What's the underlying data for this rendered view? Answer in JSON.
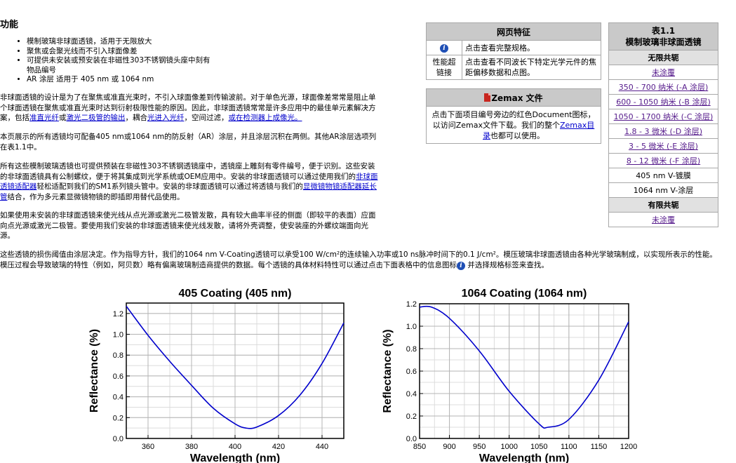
{
  "heading": "功能",
  "features": [
    "模制玻璃非球面透镜，适用于无限放大",
    "聚焦或会聚光线而不引入球面像差",
    "可提供未安装或预安装在非磁性303不锈钢镜头座中刻有物品编号",
    "AR 涂层 适用于 405 nm 或 1064 nm"
  ],
  "paragraphs": {
    "p1": "非球面透镜的设计是为了在聚焦或准直光束时，不引入球面像差到传输波前。对于单色光源，球面像差常常是阻止单个球面透镜在聚焦或准直光束时达到衍射极限性能的原因。因此，非球面透镜常常是许多应用中的最佳单元素解决方案，包括",
    "p1_link1": "准直光纤",
    "p1_mid1": "或",
    "p1_link2": "激光二极管的输出",
    "p1_mid2": "，耦合",
    "p1_link3": "光进入光纤",
    "p1_mid3": "，空间过滤，",
    "p1_link4": "或在检测器上成像光。",
    "p2": "本页展示的所有透镜均可配备405 nm或1064 nm的防反射（AR）涂层，并且涂层沉积在两侧。其他AR涂层选项列在表1.1中。",
    "p3a": "所有这些模制玻璃透镜也可提供预装在非磁性303不锈钢透镜座中，透镜座上雕刻有零件编号，便于识别。这些安装的非球面透镜具有公制螺纹，便于将其集成到光学系统或OEM应用中。安装的非球面透镜可以通过使用我们的",
    "p3_link1": "非球面透镜适配器",
    "p3b": "轻松适配到我们的SM1系列镜头管中。安装的非球面透镜可以通过将透镜与我们的",
    "p3_link2": "显微镜物镜适配器延长管",
    "p3c": "结合，作为多元素显微镜物镜的即插即用替代品使用。",
    "p4": "如果使用未安装的非球面透镜来使光线从点光源或激光二极管发散，具有较大曲率半径的侧面（即较平的表面）应面向点光源或激光二极管。要使用我们安装的非球面透镜来使光线发散，请将外壳调整，使安装座的外螺纹端面向光源。",
    "p5a": "这些透镜的损伤阈值由涂层决定。作为指导方针，我们的1064 nm V-Coating透镜可以承受100 W/cm²的连续输入功率或10 ns脉冲时间下的0.1 J/cm²。模压玻璃非球面透镜由各种光学玻璃制成，以实现所表示的性能。模压过程会导致玻璃的特性（例如，阿贝数）略有偏离玻璃制造商提供的数据。每个透镜的具体材料特性可以通过点击下面表格中的信息图标",
    "p5b": "并选择规格标签来查找。"
  },
  "web_features": {
    "title": "网页特征",
    "row1_text": "点击查看完整规格。",
    "row2_label": "性能超链接",
    "row2_text": "点击查看不同波长下特定光学元件的焦距偏移数据和点图。"
  },
  "zemax": {
    "title": "Zemax 文件",
    "text_before": "点击下面项目编号旁边的红色Document图标，以访问Zemax文件下载。我们的整个",
    "link": "Zemax目录",
    "text_after": "也都可以使用。"
  },
  "table_1_1": {
    "title1": "表1.1",
    "title2": "模制玻璃非球面透镜",
    "infinite_header": "无限共轭",
    "items": [
      "未涂覆",
      "350 - 700 纳米 (-A 涂层)",
      "600 - 1050 纳米 (-B 涂层)",
      "1050 - 1700 纳米 (-C 涂层)",
      "1.8 - 3 微米  (-D 涂层)",
      "3 - 5 微米  (-E 涂层)",
      "8 - 12 微米  (-F 涂层)"
    ],
    "plain_items": [
      "405 nm V-镀膜",
      "1064 nm V-涂层"
    ],
    "finite_header": "有限共轭",
    "finite_items": [
      "未涂覆"
    ]
  },
  "colors": {
    "curve": "#0000cc",
    "header_bg": "#c9c9c9",
    "subheader_bg": "#e1e1e1",
    "link": "#0000cc",
    "visited": "#551a8b"
  },
  "chart_data": [
    {
      "type": "line",
      "title": "405 Coating (405 nm)",
      "xlabel": "Wavelength (nm)",
      "ylabel": "Reflectance (%)",
      "xlim": [
        350,
        450
      ],
      "ylim": [
        0,
        1.3
      ],
      "xticks": [
        360,
        380,
        400,
        420,
        440
      ],
      "yticks": [
        0.0,
        0.2,
        0.4,
        0.6,
        0.8,
        1.0,
        1.2
      ],
      "grid": true,
      "series": [
        {
          "x": [
            350,
            360,
            370,
            380,
            390,
            400,
            405,
            410,
            420,
            430,
            440,
            450
          ],
          "y": [
            1.27,
            0.99,
            0.74,
            0.51,
            0.29,
            0.14,
            0.1,
            0.11,
            0.22,
            0.42,
            0.72,
            1.11
          ]
        }
      ]
    },
    {
      "type": "line",
      "title": "1064 Coating (1064 nm)",
      "xlabel": "Wavelength (nm)",
      "ylabel": "Reflectance (%)",
      "xlim": [
        850,
        1200
      ],
      "ylim": [
        0,
        1.2
      ],
      "xticks": [
        850,
        900,
        950,
        1000,
        1050,
        1100,
        1150,
        1200
      ],
      "yticks": [
        0.0,
        0.2,
        0.4,
        0.6,
        0.8,
        1.0,
        1.2
      ],
      "grid": true,
      "series": [
        {
          "x": [
            850,
            870,
            900,
            950,
            1000,
            1050,
            1065,
            1100,
            1150,
            1200
          ],
          "y": [
            1.17,
            1.17,
            1.07,
            0.78,
            0.42,
            0.13,
            0.1,
            0.17,
            0.52,
            1.04
          ]
        }
      ]
    }
  ]
}
